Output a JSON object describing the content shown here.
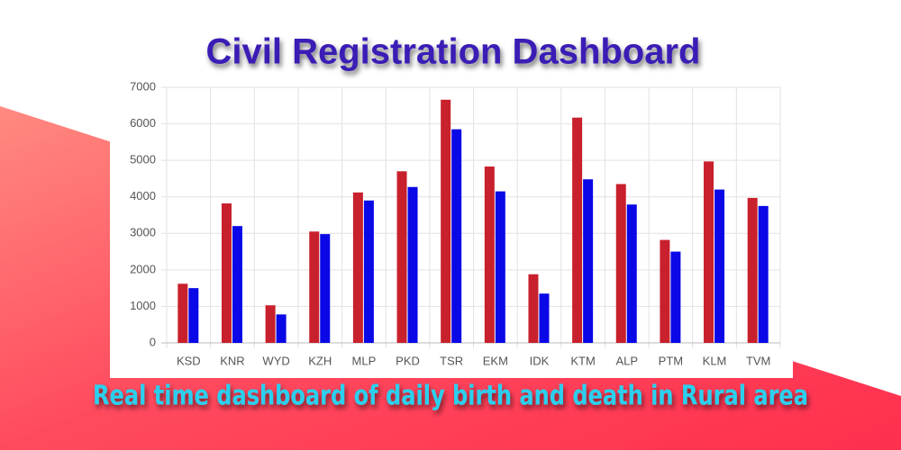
{
  "chart_data": {
    "type": "bar",
    "title": "Civil Registration Dashboard",
    "subtitle": "Real time dashboard of daily birth and death in Rural area",
    "categories": [
      "KSD",
      "KNR",
      "WYD",
      "KZH",
      "MLP",
      "PKD",
      "TSR",
      "EKM",
      "IDK",
      "KTM",
      "ALP",
      "PTM",
      "KLM",
      "TVM"
    ],
    "series": [
      {
        "color": "#c8202c",
        "values": [
          1620,
          3820,
          1030,
          3050,
          4120,
          4700,
          6660,
          4830,
          1880,
          6170,
          4350,
          2820,
          4970,
          3970
        ]
      },
      {
        "color": "#0a08e6",
        "values": [
          1500,
          3200,
          780,
          2980,
          3900,
          4270,
          5850,
          4150,
          1350,
          4480,
          3790,
          2500,
          4200,
          3750
        ]
      }
    ],
    "ylim": [
      0,
      7000
    ],
    "yticks": [
      0,
      1000,
      2000,
      3000,
      4000,
      5000,
      6000,
      7000
    ],
    "grid": true
  }
}
